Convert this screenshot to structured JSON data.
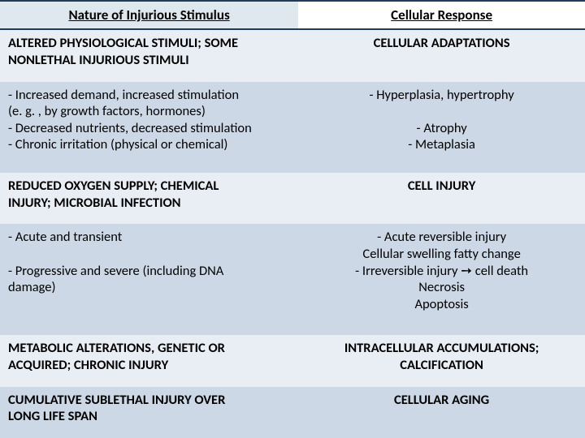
{
  "table": {
    "header": {
      "left": "Nature of Injurious Stimulus",
      "right": "Cellular Response"
    },
    "rows": [
      {
        "left_bold": true,
        "left_lines": [
          "ALTERED PHYSIOLOGICAL STIMULI; SOME",
          "NONLETHAL INJURIOUS STIMULI"
        ],
        "right_bold": true,
        "right_lines": [
          "CELLULAR ADAPTATIONS"
        ]
      },
      {
        "left_bold": false,
        "left_lines": [
          "- Increased demand, increased stimulation",
          "(e. g. , by growth factors, hormones)",
          "- Decreased nutrients, decreased stimulation",
          "- Chronic irritation (physical or chemical)"
        ],
        "right_bold": false,
        "right_lines": [
          "- Hyperplasia, hypertrophy",
          "",
          "- Atrophy",
          "- Metaplasia"
        ]
      },
      {
        "left_bold": true,
        "left_lines": [
          "REDUCED OXYGEN SUPPLY; CHEMICAL",
          "INJURY; MICROBIAL INFECTION"
        ],
        "right_bold": true,
        "right_lines": [
          "CELL INJURY"
        ]
      },
      {
        "left_bold": false,
        "left_lines": [
          "- Acute and transient",
          "",
          "- Progressive and severe (including DNA",
          "damage)"
        ],
        "right_bold": false,
        "right_lines": [
          "- Acute reversible injury",
          "Cellular swelling fatty change",
          "- Irreversible injury ➙ cell death",
          "Necrosis",
          "Apoptosis"
        ]
      },
      {
        "left_bold": true,
        "left_lines": [
          "METABOLIC ALTERATIONS, GENETIC OR",
          "ACQUIRED; CHRONIC INJURY"
        ],
        "right_bold": true,
        "right_lines": [
          "INTRACELLULAR ACCUMULATIONS;",
          "CALCIFICATION"
        ]
      },
      {
        "left_bold": true,
        "left_lines": [
          "CUMULATIVE SUBLETHAL INJURY OVER",
          "LONG LIFE SPAN"
        ],
        "right_bold": true,
        "right_lines": [
          "CELLULAR AGING"
        ]
      }
    ],
    "colors": {
      "header_border": "#1f3b60",
      "odd_row_bg": "#e9eef5",
      "even_row_bg": "#ccd8e6",
      "header_left_bg": "#dfe7ef",
      "header_right_bg": "#ffffff",
      "text": "#000000"
    },
    "font_sizes": {
      "header": 17,
      "body": 16.5
    }
  }
}
